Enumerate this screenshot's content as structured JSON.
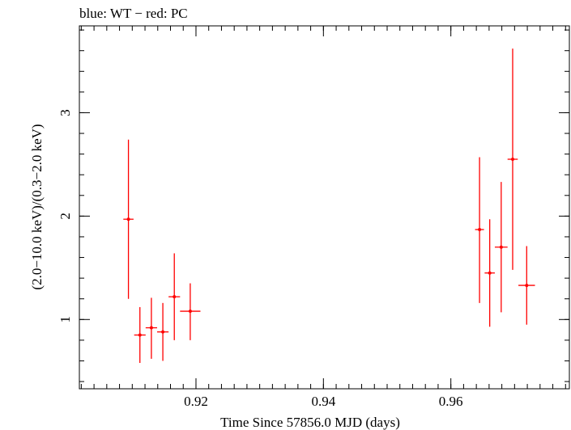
{
  "chart_data": {
    "type": "scatter",
    "title": "blue: WT − red: PC",
    "xlabel": "Time Since 57856.0 MJD (days)",
    "ylabel": "(2.0−10.0 keV)/(0.3−2.0 keV)",
    "xlim": [
      0.9017,
      0.9786
    ],
    "ylim": [
      0.33,
      3.84
    ],
    "x_ticks": [
      {
        "value": 0.92,
        "label": "0.92"
      },
      {
        "value": 0.94,
        "label": "0.94"
      },
      {
        "value": 0.96,
        "label": "0.96"
      }
    ],
    "y_ticks": [
      {
        "value": 1,
        "label": "1"
      },
      {
        "value": 2,
        "label": "2"
      },
      {
        "value": 3,
        "label": "3"
      }
    ],
    "grid": false,
    "legend": "none",
    "series": [
      {
        "color": "#ff0000",
        "points": [
          {
            "x": 0.9094,
            "y": 1.97,
            "xerr": 0.0008,
            "ylo": 1.2,
            "yhi": 2.74
          },
          {
            "x": 0.9112,
            "y": 0.85,
            "xerr": 0.0009,
            "ylo": 0.58,
            "yhi": 1.12
          },
          {
            "x": 0.913,
            "y": 0.92,
            "xerr": 0.0009,
            "ylo": 0.62,
            "yhi": 1.21
          },
          {
            "x": 0.9148,
            "y": 0.88,
            "xerr": 0.0009,
            "ylo": 0.6,
            "yhi": 1.16
          },
          {
            "x": 0.9166,
            "y": 1.22,
            "xerr": 0.0009,
            "ylo": 0.8,
            "yhi": 1.64
          },
          {
            "x": 0.9191,
            "y": 1.08,
            "xerr": 0.0016,
            "ylo": 0.8,
            "yhi": 1.35
          },
          {
            "x": 0.9645,
            "y": 1.87,
            "xerr": 0.0007,
            "ylo": 1.16,
            "yhi": 2.57
          },
          {
            "x": 0.9661,
            "y": 1.45,
            "xerr": 0.0008,
            "ylo": 0.93,
            "yhi": 1.97
          },
          {
            "x": 0.9679,
            "y": 1.7,
            "xerr": 0.001,
            "ylo": 1.07,
            "yhi": 2.33
          },
          {
            "x": 0.9697,
            "y": 2.55,
            "xerr": 0.0008,
            "ylo": 1.48,
            "yhi": 3.62
          },
          {
            "x": 0.9719,
            "y": 1.33,
            "xerr": 0.0013,
            "ylo": 0.95,
            "yhi": 1.71
          }
        ]
      }
    ]
  }
}
